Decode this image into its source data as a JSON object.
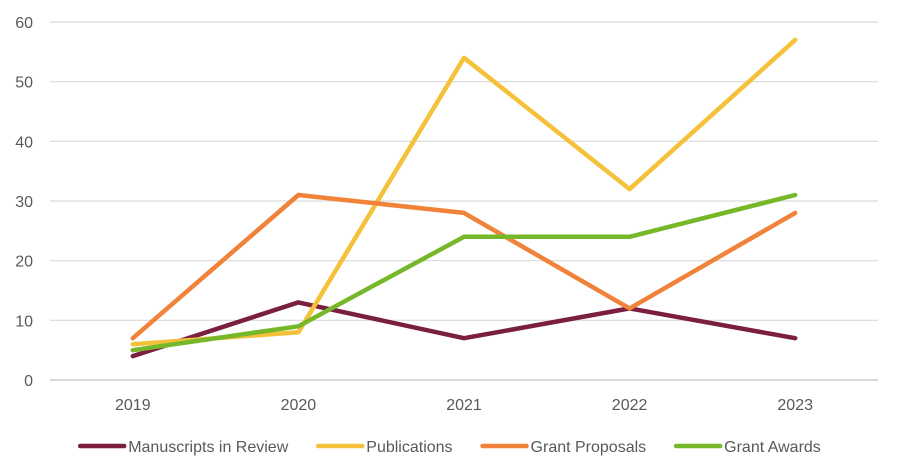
{
  "chart_data": {
    "type": "line",
    "title": "",
    "xlabel": "",
    "ylabel": "",
    "categories": [
      "2019",
      "2020",
      "2021",
      "2022",
      "2023"
    ],
    "ylim": [
      0,
      60
    ],
    "yticks": [
      0,
      10,
      20,
      30,
      40,
      50,
      60
    ],
    "grid": true,
    "legend_position": "bottom",
    "series": [
      {
        "name": "Manuscripts in Review",
        "color": "#7b1f3f",
        "values": [
          4,
          13,
          7,
          12,
          7
        ]
      },
      {
        "name": "Publications",
        "color": "#f5c13a",
        "values": [
          6,
          8,
          54,
          32,
          57
        ]
      },
      {
        "name": "Grant Proposals",
        "color": "#f0823a",
        "values": [
          7,
          31,
          28,
          12,
          28
        ]
      },
      {
        "name": "Grant Awards",
        "color": "#76b82a",
        "values": [
          5,
          9,
          24,
          24,
          31
        ]
      }
    ]
  }
}
